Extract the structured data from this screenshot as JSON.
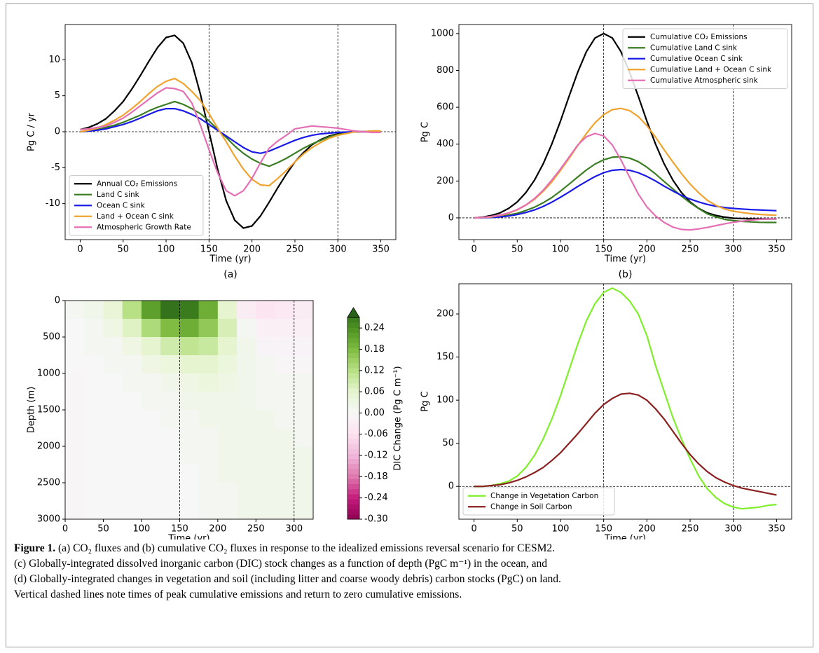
{
  "chart_data": [
    {
      "type": "line",
      "label": "(a)",
      "xlabel": "Time (yr)",
      "ylabel": "Pg C / yr",
      "xlim": [
        -17.5,
        367.5
      ],
      "ylim": [
        -15,
        14.9
      ],
      "xticks": [
        0,
        50,
        100,
        150,
        200,
        250,
        300,
        350
      ],
      "yticks": [
        -10,
        -5,
        0,
        5,
        10
      ],
      "vlines": [
        150,
        300
      ],
      "hline": 0,
      "legend": "lower left",
      "x": [
        0,
        10,
        20,
        30,
        40,
        50,
        60,
        70,
        80,
        90,
        100,
        110,
        120,
        130,
        140,
        150,
        160,
        170,
        180,
        190,
        200,
        210,
        220,
        230,
        240,
        250,
        260,
        270,
        280,
        290,
        300,
        310,
        320,
        330,
        340,
        350
      ],
      "series": [
        {
          "name": "Annual CO₂ Emissions",
          "color": "#000000",
          "values": [
            0.3,
            0.6,
            1.1,
            1.8,
            2.9,
            4.2,
            5.9,
            7.8,
            9.8,
            11.7,
            13.1,
            13.4,
            12.3,
            9.6,
            5.2,
            0,
            -5.2,
            -9.6,
            -12.3,
            -13.4,
            -13.1,
            -11.7,
            -9.8,
            -7.8,
            -5.9,
            -4.2,
            -2.9,
            -1.8,
            -1.1,
            -0.6,
            -0.3,
            -0.1,
            0,
            0,
            0,
            0
          ]
        },
        {
          "name": "Land C sink",
          "color": "#3b7d23",
          "values": [
            0,
            0.1,
            0.3,
            0.6,
            0.9,
            1.3,
            1.8,
            2.3,
            2.9,
            3.4,
            3.8,
            4.2,
            3.8,
            3.2,
            2.5,
            1.5,
            0.3,
            -0.8,
            -2,
            -3,
            -3.8,
            -4.4,
            -4.8,
            -4.3,
            -3.7,
            -3,
            -2.3,
            -1.7,
            -1.2,
            -0.7,
            -0.4,
            -0.2,
            0,
            0,
            0.1,
            0.1
          ]
        },
        {
          "name": "Ocean C sink",
          "color": "#1a1ae6",
          "values": [
            0,
            0.1,
            0.2,
            0.4,
            0.7,
            1,
            1.4,
            1.9,
            2.4,
            2.9,
            3.2,
            3.2,
            2.9,
            2.4,
            1.8,
            1,
            0.2,
            -0.6,
            -1.4,
            -2.2,
            -2.8,
            -3,
            -2.7,
            -2.2,
            -1.7,
            -1.2,
            -0.8,
            -0.5,
            -0.3,
            -0.2,
            -0.1,
            -0.05,
            0,
            0,
            0,
            0
          ]
        },
        {
          "name": "Land + Ocean C sink",
          "color": "#f0a32e",
          "values": [
            0,
            0.2,
            0.5,
            1,
            1.6,
            2.3,
            3.2,
            4.2,
            5.3,
            6.3,
            7,
            7.4,
            6.7,
            5.6,
            4.3,
            2.5,
            0.5,
            -1.4,
            -3.4,
            -5.2,
            -6.6,
            -7.4,
            -7.5,
            -6.5,
            -5.4,
            -4.2,
            -3.1,
            -2.2,
            -1.5,
            -0.9,
            -0.5,
            -0.25,
            0,
            0,
            0.1,
            0.1
          ]
        },
        {
          "name": "Atmospheric Growth Rate",
          "color": "#e56fb4",
          "values": [
            0.3,
            0.4,
            0.6,
            0.8,
            1.3,
            1.9,
            2.7,
            3.6,
            4.5,
            5.4,
            6.1,
            6,
            5.6,
            4,
            0.9,
            -2.5,
            -5.7,
            -8.2,
            -8.9,
            -8.2,
            -6.5,
            -4.3,
            -2.3,
            -1.3,
            -0.5,
            0.4,
            0.6,
            0.8,
            0.7,
            0.6,
            0.5,
            0.3,
            0.1,
            0,
            -0.1,
            -0.1
          ]
        }
      ]
    },
    {
      "type": "line",
      "label": "(b)",
      "xlabel": "Time (yr)",
      "ylabel": "Pg C",
      "xlim": [
        -17.5,
        367.5
      ],
      "ylim": [
        -118,
        1049
      ],
      "xticks": [
        0,
        50,
        100,
        150,
        200,
        250,
        300,
        350
      ],
      "yticks": [
        0,
        200,
        400,
        600,
        800,
        1000
      ],
      "vlines": [
        150,
        300
      ],
      "hline": 0,
      "legend": "upper right",
      "x": [
        0,
        10,
        20,
        30,
        40,
        50,
        60,
        70,
        80,
        90,
        100,
        110,
        120,
        130,
        140,
        150,
        160,
        170,
        180,
        190,
        200,
        210,
        220,
        230,
        240,
        250,
        260,
        270,
        280,
        290,
        300,
        310,
        320,
        330,
        340,
        350
      ],
      "series": [
        {
          "name": "Cumulative CO₂ Emissions",
          "color": "#000000",
          "values": [
            0,
            4,
            13,
            27,
            51,
            86,
            137,
            205,
            293,
            400,
            525,
            660,
            790,
            902,
            976,
            1000,
            976,
            902,
            790,
            660,
            525,
            400,
            293,
            205,
            137,
            86,
            51,
            27,
            13,
            4,
            -2,
            -4,
            -5,
            -6,
            -6,
            -6
          ]
        },
        {
          "name": "Cumulative Land C sink",
          "color": "#3b7d23",
          "values": [
            0,
            1,
            3,
            8,
            15,
            25,
            40,
            58,
            82,
            110,
            145,
            183,
            222,
            260,
            292,
            315,
            329,
            332,
            324,
            305,
            275,
            238,
            197,
            157,
            118,
            82,
            50,
            22,
            5,
            -8,
            -15,
            -19,
            -22,
            -24,
            -25,
            -25
          ]
        },
        {
          "name": "Cumulative Ocean C sink",
          "color": "#1a1ae6",
          "values": [
            0,
            1,
            2,
            5,
            10,
            18,
            29,
            43,
            62,
            85,
            112,
            140,
            170,
            198,
            224,
            245,
            258,
            262,
            258,
            245,
            225,
            200,
            172,
            146,
            122,
            102,
            86,
            73,
            63,
            56,
            51,
            48,
            45,
            43,
            41,
            39
          ]
        },
        {
          "name": "Cumulative Land + Ocean C sink",
          "color": "#f0a32e",
          "values": [
            0,
            2,
            5,
            13,
            25,
            43,
            69,
            101,
            144,
            195,
            257,
            323,
            392,
            458,
            516,
            560,
            587,
            594,
            582,
            550,
            500,
            438,
            369,
            303,
            240,
            184,
            136,
            95,
            68,
            48,
            36,
            29,
            23,
            19,
            16,
            14
          ]
        },
        {
          "name": "Cumulative Atmospheric sink",
          "color": "#e56fb4",
          "values": [
            0,
            2,
            8,
            15,
            27,
            45,
            70,
            105,
            150,
            205,
            265,
            330,
            395,
            440,
            458,
            445,
            395,
            315,
            220,
            130,
            60,
            10,
            -25,
            -50,
            -63,
            -65,
            -60,
            -52,
            -42,
            -32,
            -24,
            -18,
            -12,
            -8,
            -6,
            -5
          ]
        }
      ]
    },
    {
      "type": "heatmap",
      "label": "(c)",
      "xlabel": "Time (yr)",
      "ylabel": "Depth (m)",
      "xlim": [
        0,
        325
      ],
      "ylim": [
        3000,
        0
      ],
      "xticks": [
        0,
        50,
        100,
        150,
        200,
        250,
        300
      ],
      "yticks": [
        0,
        500,
        1000,
        1500,
        2000,
        2500,
        3000
      ],
      "vlines": [
        150,
        300
      ],
      "cmap": "PiYG",
      "clim": [
        -0.3,
        0.3
      ],
      "x_edges": [
        0,
        25,
        50,
        75,
        100,
        125,
        150,
        175,
        200,
        225,
        250,
        275,
        300,
        325
      ],
      "y_edges": [
        0,
        250,
        500,
        750,
        1000,
        1250,
        1500,
        1750,
        2000,
        2250,
        2500,
        2750,
        3000
      ],
      "z": [
        [
          0.01,
          0.02,
          0.05,
          0.12,
          0.22,
          0.28,
          0.27,
          0.2,
          0.06,
          -0.03,
          -0.05,
          -0.04,
          -0.03
        ],
        [
          0,
          0.01,
          0.03,
          0.07,
          0.13,
          0.18,
          0.2,
          0.16,
          0.08,
          0.01,
          -0.02,
          -0.02,
          -0.02
        ],
        [
          0,
          0.01,
          0.01,
          0.03,
          0.06,
          0.09,
          0.11,
          0.1,
          0.06,
          0.02,
          -0.01,
          -0.01,
          -0.01
        ],
        [
          0,
          0,
          0.01,
          0.01,
          0.03,
          0.04,
          0.06,
          0.06,
          0.04,
          0.02,
          0.01,
          -0.005,
          -0.005
        ],
        [
          -0.005,
          0,
          0,
          0.01,
          0.01,
          0.02,
          0.03,
          0.04,
          0.03,
          0.02,
          0.01,
          0.01,
          0.01
        ],
        [
          -0.005,
          0,
          0,
          0,
          0.01,
          0.01,
          0.02,
          0.02,
          0.02,
          0.02,
          0.01,
          0.01,
          0.01
        ],
        [
          -0.005,
          0,
          0,
          0,
          0,
          0.01,
          0.01,
          0.02,
          0.02,
          0.02,
          0.02,
          0.01,
          0.01
        ],
        [
          -0.005,
          0,
          0,
          0,
          0,
          0,
          0.01,
          0.01,
          0.02,
          0.02,
          0.02,
          0.02,
          0.01
        ],
        [
          -0.005,
          0,
          0,
          0,
          0,
          0,
          0.01,
          0.01,
          0.02,
          0.02,
          0.02,
          0.02,
          0.02
        ],
        [
          -0.005,
          0,
          0,
          0,
          0,
          0,
          0,
          0.01,
          0.02,
          0.02,
          0.02,
          0.02,
          0.02
        ],
        [
          -0.005,
          0,
          0,
          0,
          0,
          0,
          0,
          0.01,
          0.01,
          0.02,
          0.02,
          0.02,
          0.02
        ],
        [
          -0.005,
          0,
          0,
          0,
          0,
          0,
          0,
          0.01,
          0.01,
          0.02,
          0.02,
          0.02,
          0.02
        ]
      ],
      "colorbar": {
        "label": "DIC Change (Pg C m⁻¹)",
        "lim": [
          -0.3,
          0.27
        ],
        "extend": "max",
        "ticks": [
          0.24,
          0.18,
          0.12,
          0.06,
          {
            "value": 0,
            "label": "0.00"
          },
          -0.06,
          -0.12,
          -0.18,
          -0.24,
          {
            "value": -0.3,
            "label": "-0.30"
          }
        ]
      }
    },
    {
      "type": "line",
      "label": "(d)",
      "xlabel": "Time (yr)",
      "ylabel": "Pg C",
      "xlim": [
        -17.5,
        367.5
      ],
      "ylim": [
        -38,
        235
      ],
      "xticks": [
        0,
        50,
        100,
        150,
        200,
        250,
        300,
        350
      ],
      "yticks": [
        0,
        50,
        100,
        150,
        200
      ],
      "vlines": [
        150,
        300
      ],
      "hline": 0,
      "legend": "lower left",
      "x": [
        0,
        10,
        20,
        30,
        40,
        50,
        60,
        70,
        80,
        90,
        100,
        110,
        120,
        130,
        140,
        150,
        160,
        170,
        180,
        190,
        200,
        210,
        220,
        230,
        240,
        250,
        260,
        270,
        280,
        290,
        300,
        310,
        320,
        330,
        340,
        350
      ],
      "series": [
        {
          "name": "Change in Vegetation Carbon",
          "color": "#7fef2a",
          "values": [
            0,
            0,
            1,
            3,
            6,
            12,
            22,
            36,
            55,
            78,
            105,
            135,
            165,
            192,
            212,
            225,
            230,
            225,
            215,
            200,
            175,
            140,
            110,
            80,
            55,
            32,
            12,
            -3,
            -13,
            -20,
            -24,
            -26,
            -25,
            -24,
            -22,
            -21
          ]
        },
        {
          "name": "Change in Soil Carbon",
          "color": "#8b2020",
          "values": [
            0,
            0,
            1,
            2,
            4,
            7,
            11,
            16,
            22,
            30,
            39,
            50,
            61,
            73,
            85,
            95,
            102,
            107,
            108,
            106,
            100,
            90,
            78,
            64,
            50,
            37,
            26,
            17,
            10,
            5,
            1,
            -2,
            -4,
            -6,
            -8,
            -10
          ]
        }
      ]
    }
  ],
  "caption": {
    "label": "Figure 1.",
    "lines": [
      "(a) CO₂ fluxes and (b) cumulative CO₂ fluxes in response to the idealized emissions reversal scenario for CESM2.",
      "(c) Globally-integrated dissolved inorganic carbon (DIC) stock changes as a function of depth (PgC m⁻¹) in the ocean, and",
      "(d) Globally-integrated changes in vegetation and soil (including litter and coarse woody debris) carbon stocks (PgC) on land.",
      "Vertical dashed lines note times of peak cumulative emissions and return to zero cumulative emissions."
    ]
  }
}
